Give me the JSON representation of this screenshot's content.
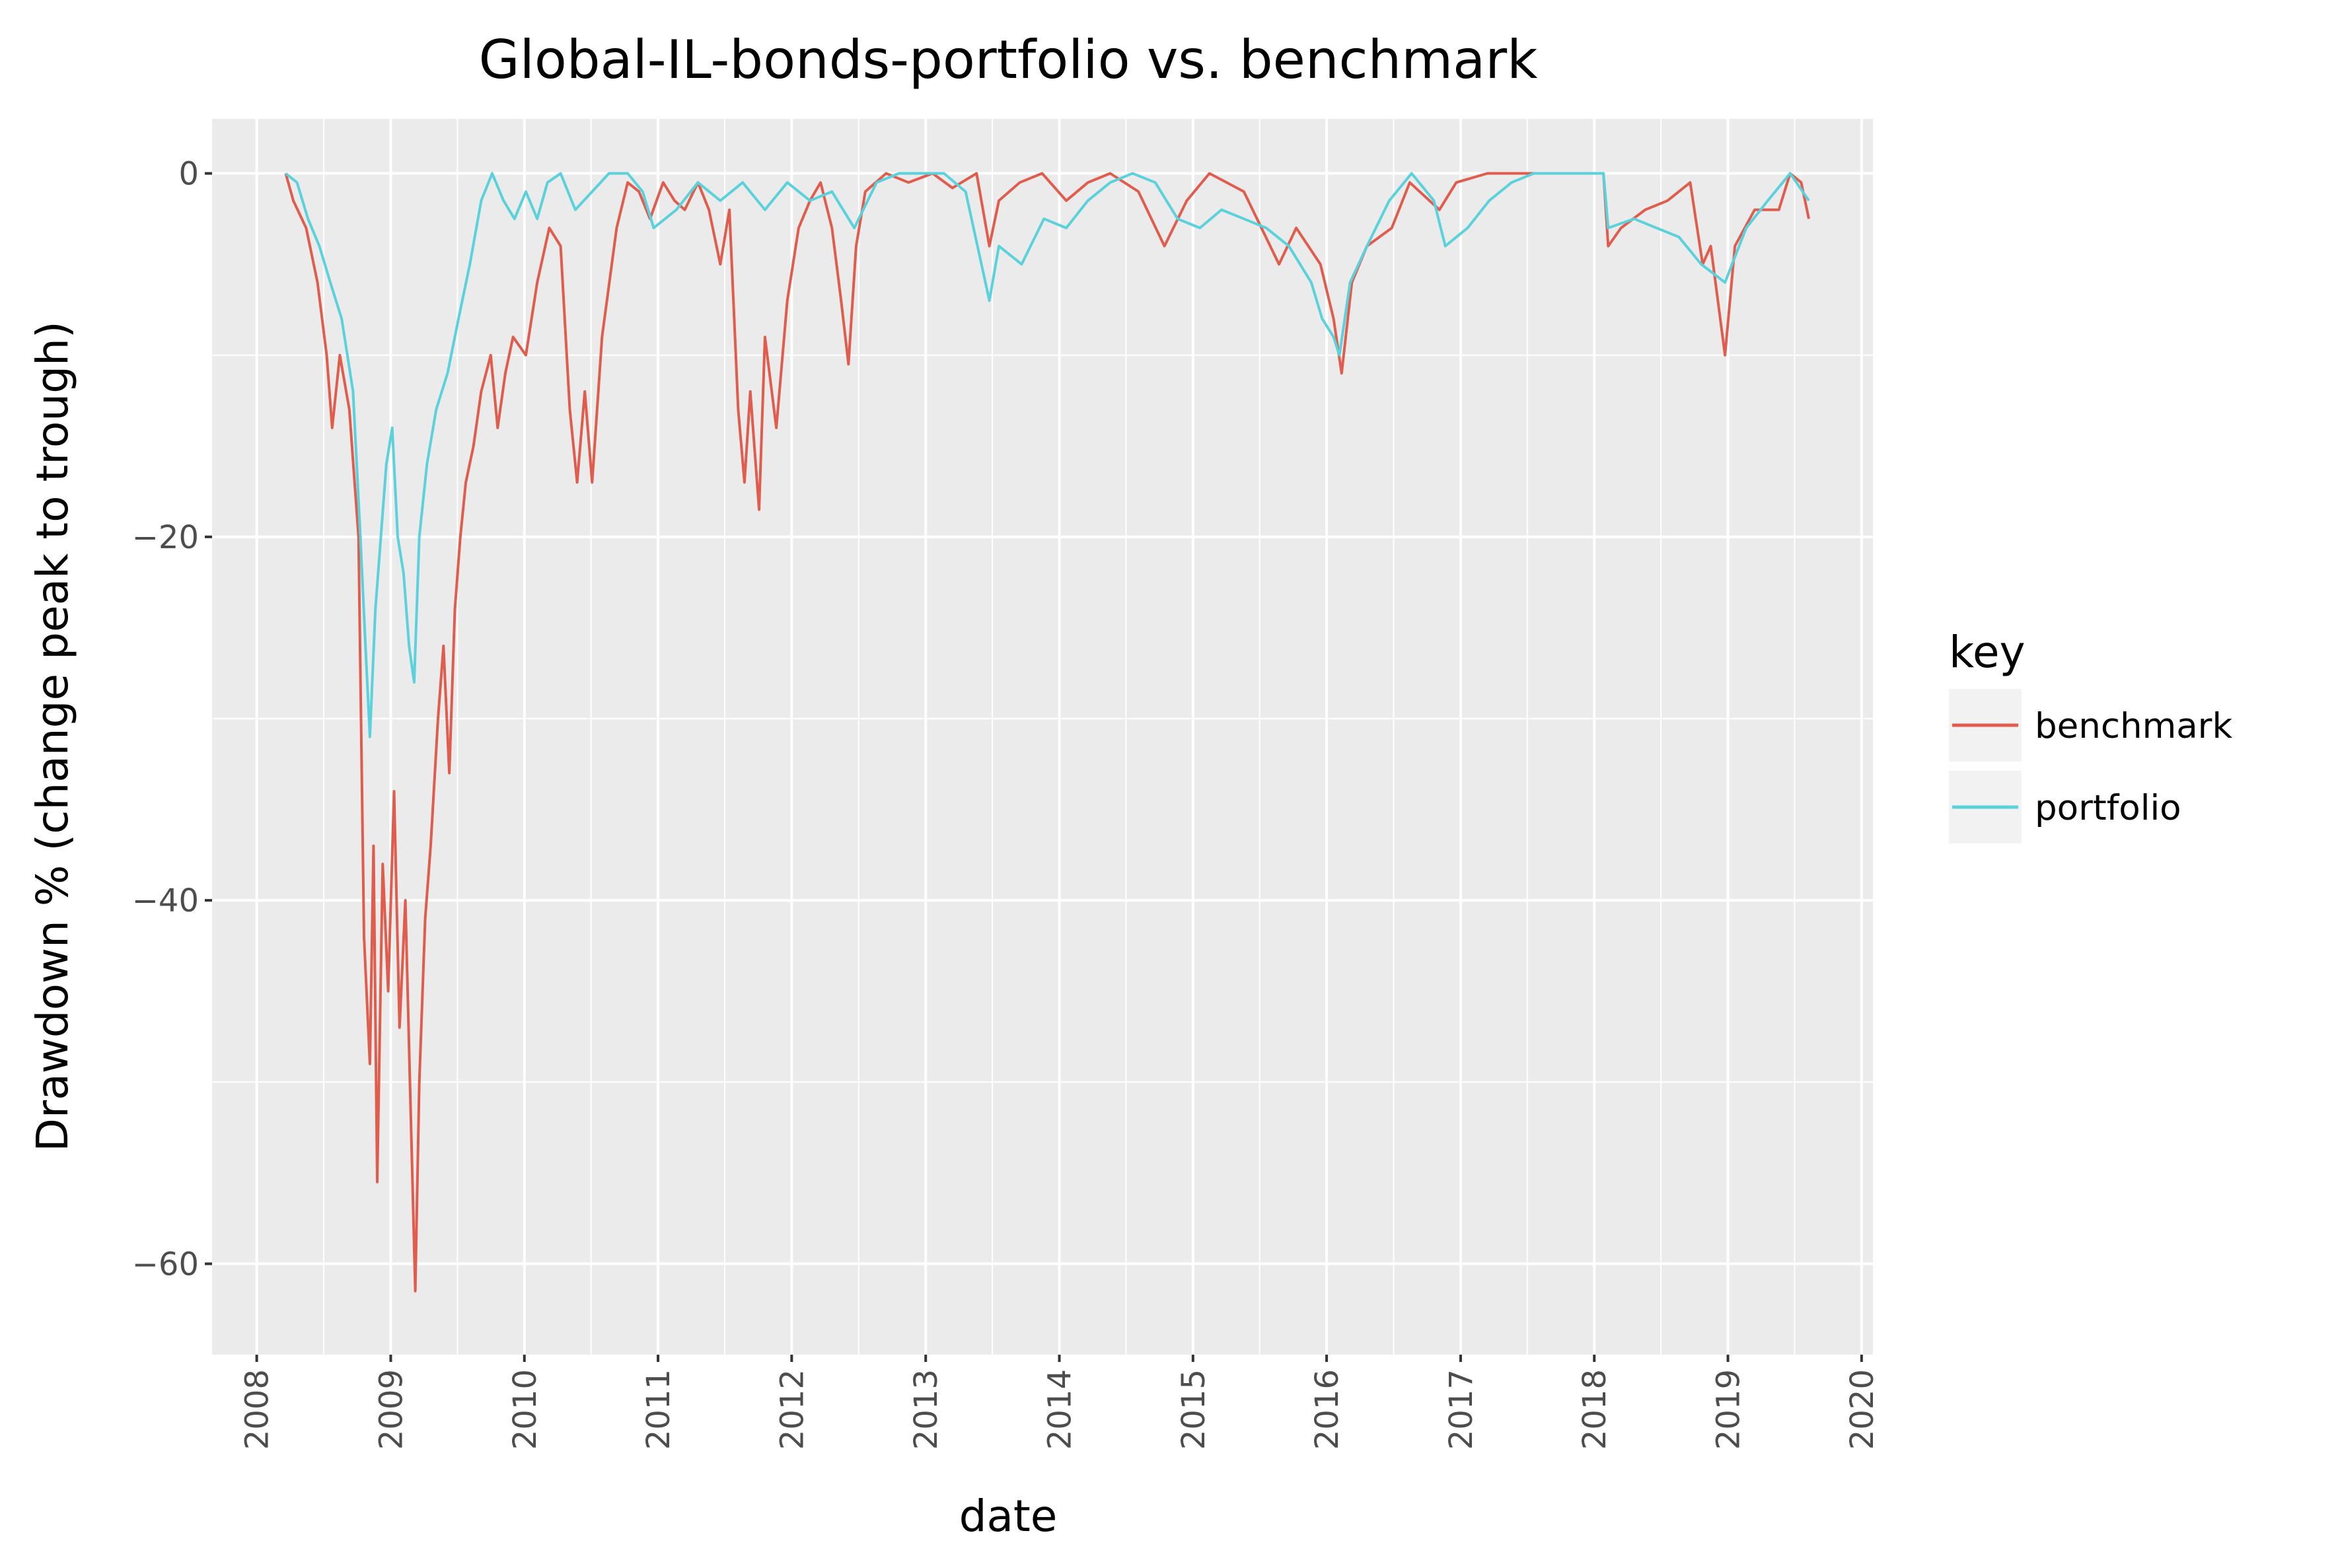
{
  "chart_data": {
    "type": "line",
    "title": "Global-IL-bonds-portfolio vs. benchmark",
    "xlabel": "date",
    "ylabel": "Drawdown % (change peak to trough)",
    "x_ticks": [
      "2008",
      "2009",
      "2010",
      "2011",
      "2012",
      "2013",
      "2014",
      "2015",
      "2016",
      "2017",
      "2018",
      "2019",
      "2020"
    ],
    "y_ticks": [
      0,
      -20,
      -40,
      -60
    ],
    "y_tick_labels": [
      "0",
      "−20",
      "−40",
      "−60"
    ],
    "xlim": [
      "2007-09-01",
      "2020-02-01"
    ],
    "ylim": [
      -65,
      3
    ],
    "grid": true,
    "legend": {
      "title": "key",
      "position": "right",
      "entries": [
        "benchmark",
        "portfolio"
      ]
    },
    "series": [
      {
        "name": "benchmark",
        "color": "#e05c4d",
        "points": [
          [
            "2008-03-20",
            0
          ],
          [
            "2008-04-10",
            -1.5
          ],
          [
            "2008-05-15",
            -3
          ],
          [
            "2008-06-15",
            -6
          ],
          [
            "2008-07-10",
            -10
          ],
          [
            "2008-07-25",
            -14
          ],
          [
            "2008-08-15",
            -10
          ],
          [
            "2008-09-10",
            -13
          ],
          [
            "2008-10-05",
            -20
          ],
          [
            "2008-10-20",
            -42
          ],
          [
            "2008-11-05",
            -49
          ],
          [
            "2008-11-15",
            -37
          ],
          [
            "2008-11-25",
            -55.5
          ],
          [
            "2008-12-10",
            -38
          ],
          [
            "2008-12-25",
            -45
          ],
          [
            "2009-01-10",
            -34
          ],
          [
            "2009-01-25",
            -47
          ],
          [
            "2009-02-10",
            -40
          ],
          [
            "2009-02-25",
            -52
          ],
          [
            "2009-03-09",
            -61.5
          ],
          [
            "2009-03-20",
            -50
          ],
          [
            "2009-04-05",
            -41
          ],
          [
            "2009-04-20",
            -37
          ],
          [
            "2009-05-10",
            -30
          ],
          [
            "2009-05-25",
            -26
          ],
          [
            "2009-06-10",
            -33
          ],
          [
            "2009-06-25",
            -24
          ],
          [
            "2009-07-10",
            -20
          ],
          [
            "2009-07-25",
            -17
          ],
          [
            "2009-08-15",
            -15
          ],
          [
            "2009-09-05",
            -12
          ],
          [
            "2009-10-01",
            -10
          ],
          [
            "2009-10-20",
            -14
          ],
          [
            "2009-11-10",
            -11
          ],
          [
            "2009-12-01",
            -9
          ],
          [
            "2010-01-05",
            -10
          ],
          [
            "2010-02-05",
            -6
          ],
          [
            "2010-03-10",
            -3
          ],
          [
            "2010-04-10",
            -4
          ],
          [
            "2010-05-05",
            -13
          ],
          [
            "2010-05-25",
            -17
          ],
          [
            "2010-06-15",
            -12
          ],
          [
            "2010-07-05",
            -17
          ],
          [
            "2010-08-01",
            -9
          ],
          [
            "2010-09-10",
            -3
          ],
          [
            "2010-10-10",
            -0.5
          ],
          [
            "2010-11-10",
            -1
          ],
          [
            "2010-12-10",
            -2.5
          ],
          [
            "2011-01-15",
            -0.5
          ],
          [
            "2011-02-15",
            -1.5
          ],
          [
            "2011-03-15",
            -2
          ],
          [
            "2011-04-20",
            -0.5
          ],
          [
            "2011-05-20",
            -2
          ],
          [
            "2011-06-20",
            -5
          ],
          [
            "2011-07-15",
            -2
          ],
          [
            "2011-08-08",
            -13
          ],
          [
            "2011-08-25",
            -17
          ],
          [
            "2011-09-10",
            -12
          ],
          [
            "2011-10-04",
            -18.5
          ],
          [
            "2011-10-20",
            -9
          ],
          [
            "2011-11-20",
            -14
          ],
          [
            "2011-12-20",
            -7
          ],
          [
            "2012-01-20",
            -3
          ],
          [
            "2012-02-20",
            -1.5
          ],
          [
            "2012-03-20",
            -0.5
          ],
          [
            "2012-04-20",
            -3
          ],
          [
            "2012-05-15",
            -7
          ],
          [
            "2012-06-04",
            -10.5
          ],
          [
            "2012-06-25",
            -4
          ],
          [
            "2012-07-20",
            -1
          ],
          [
            "2012-09-15",
            0
          ],
          [
            "2012-11-15",
            -0.5
          ],
          [
            "2013-01-20",
            0
          ],
          [
            "2013-03-15",
            -0.8
          ],
          [
            "2013-05-20",
            0
          ],
          [
            "2013-06-24",
            -4
          ],
          [
            "2013-07-20",
            -1.5
          ],
          [
            "2013-09-15",
            -0.5
          ],
          [
            "2013-11-15",
            0
          ],
          [
            "2014-01-20",
            -1.5
          ],
          [
            "2014-03-20",
            -0.5
          ],
          [
            "2014-05-20",
            0
          ],
          [
            "2014-08-05",
            -1
          ],
          [
            "2014-10-15",
            -4
          ],
          [
            "2014-12-15",
            -1.5
          ],
          [
            "2015-02-15",
            0
          ],
          [
            "2015-05-20",
            -1
          ],
          [
            "2015-08-24",
            -5
          ],
          [
            "2015-10-10",
            -3
          ],
          [
            "2015-12-15",
            -5
          ],
          [
            "2016-01-20",
            -8
          ],
          [
            "2016-02-11",
            -11
          ],
          [
            "2016-03-10",
            -6
          ],
          [
            "2016-04-20",
            -4
          ],
          [
            "2016-06-27",
            -3
          ],
          [
            "2016-08-15",
            -0.5
          ],
          [
            "2016-11-04",
            -2
          ],
          [
            "2016-12-20",
            -0.5
          ],
          [
            "2017-03-15",
            0
          ],
          [
            "2017-06-15",
            0
          ],
          [
            "2017-09-15",
            0
          ],
          [
            "2017-12-15",
            0
          ],
          [
            "2018-01-26",
            0
          ],
          [
            "2018-02-08",
            -4
          ],
          [
            "2018-03-15",
            -3
          ],
          [
            "2018-05-20",
            -2
          ],
          [
            "2018-07-20",
            -1.5
          ],
          [
            "2018-09-20",
            -0.5
          ],
          [
            "2018-10-24",
            -5
          ],
          [
            "2018-11-15",
            -4
          ],
          [
            "2018-12-24",
            -10
          ],
          [
            "2019-01-20",
            -4
          ],
          [
            "2019-03-15",
            -2
          ],
          [
            "2019-05-20",
            -2
          ],
          [
            "2019-06-20",
            0
          ],
          [
            "2019-07-20",
            -0.5
          ],
          [
            "2019-08-10",
            -2.5
          ]
        ]
      },
      {
        "name": "portfolio",
        "color": "#5bd1dc",
        "points": [
          [
            "2008-03-20",
            0
          ],
          [
            "2008-04-20",
            -0.5
          ],
          [
            "2008-05-20",
            -2.5
          ],
          [
            "2008-06-20",
            -4
          ],
          [
            "2008-07-20",
            -6
          ],
          [
            "2008-08-20",
            -8
          ],
          [
            "2008-09-20",
            -12
          ],
          [
            "2008-10-10",
            -20
          ],
          [
            "2008-10-24",
            -26
          ],
          [
            "2008-11-05",
            -31
          ],
          [
            "2008-11-20",
            -24
          ],
          [
            "2008-12-05",
            -20
          ],
          [
            "2008-12-20",
            -16
          ],
          [
            "2009-01-05",
            -14
          ],
          [
            "2009-01-20",
            -20
          ],
          [
            "2009-02-05",
            -22
          ],
          [
            "2009-02-20",
            -26
          ],
          [
            "2009-03-06",
            -28
          ],
          [
            "2009-03-20",
            -20
          ],
          [
            "2009-04-10",
            -16
          ],
          [
            "2009-05-05",
            -13
          ],
          [
            "2009-06-05",
            -11
          ],
          [
            "2009-07-05",
            -8
          ],
          [
            "2009-08-05",
            -5
          ],
          [
            "2009-09-05",
            -1.5
          ],
          [
            "2009-10-05",
            0
          ],
          [
            "2009-11-05",
            -1.5
          ],
          [
            "2009-12-05",
            -2.5
          ],
          [
            "2010-01-05",
            -1
          ],
          [
            "2010-02-05",
            -2.5
          ],
          [
            "2010-03-05",
            -0.5
          ],
          [
            "2010-04-10",
            0
          ],
          [
            "2010-05-20",
            -2
          ],
          [
            "2010-07-05",
            -1
          ],
          [
            "2010-08-20",
            0
          ],
          [
            "2010-10-10",
            0
          ],
          [
            "2010-11-20",
            -1
          ],
          [
            "2010-12-20",
            -3
          ],
          [
            "2011-02-20",
            -2
          ],
          [
            "2011-04-20",
            -0.5
          ],
          [
            "2011-06-20",
            -1.5
          ],
          [
            "2011-08-20",
            -0.5
          ],
          [
            "2011-10-20",
            -2
          ],
          [
            "2011-12-20",
            -0.5
          ],
          [
            "2012-02-20",
            -1.5
          ],
          [
            "2012-04-20",
            -1
          ],
          [
            "2012-06-20",
            -3
          ],
          [
            "2012-08-20",
            -0.5
          ],
          [
            "2012-10-20",
            0
          ],
          [
            "2012-12-20",
            0
          ],
          [
            "2013-02-20",
            0
          ],
          [
            "2013-04-20",
            -1
          ],
          [
            "2013-06-24",
            -7
          ],
          [
            "2013-07-20",
            -4
          ],
          [
            "2013-09-20",
            -5
          ],
          [
            "2013-11-20",
            -2.5
          ],
          [
            "2014-01-20",
            -3
          ],
          [
            "2014-03-20",
            -1.5
          ],
          [
            "2014-05-20",
            -0.5
          ],
          [
            "2014-07-20",
            0
          ],
          [
            "2014-09-20",
            -0.5
          ],
          [
            "2014-11-20",
            -2.5
          ],
          [
            "2015-01-20",
            -3
          ],
          [
            "2015-03-20",
            -2
          ],
          [
            "2015-05-20",
            -2.5
          ],
          [
            "2015-07-20",
            -3
          ],
          [
            "2015-09-20",
            -4
          ],
          [
            "2015-11-20",
            -6
          ],
          [
            "2015-12-20",
            -8
          ],
          [
            "2016-01-20",
            -9
          ],
          [
            "2016-02-05",
            -10
          ],
          [
            "2016-03-05",
            -6
          ],
          [
            "2016-04-20",
            -4
          ],
          [
            "2016-06-20",
            -1.5
          ],
          [
            "2016-08-20",
            0
          ],
          [
            "2016-10-20",
            -1.5
          ],
          [
            "2016-11-20",
            -4
          ],
          [
            "2017-01-20",
            -3
          ],
          [
            "2017-03-20",
            -1.5
          ],
          [
            "2017-05-20",
            -0.5
          ],
          [
            "2017-07-20",
            0
          ],
          [
            "2017-09-20",
            0
          ],
          [
            "2017-11-20",
            0
          ],
          [
            "2018-01-26",
            0
          ],
          [
            "2018-02-08",
            -3
          ],
          [
            "2018-04-20",
            -2.5
          ],
          [
            "2018-06-20",
            -3
          ],
          [
            "2018-08-20",
            -3.5
          ],
          [
            "2018-10-20",
            -5
          ],
          [
            "2018-12-24",
            -6
          ],
          [
            "2019-02-20",
            -3
          ],
          [
            "2019-04-20",
            -1.5
          ],
          [
            "2019-06-20",
            0
          ],
          [
            "2019-08-10",
            -1.5
          ]
        ]
      }
    ]
  }
}
